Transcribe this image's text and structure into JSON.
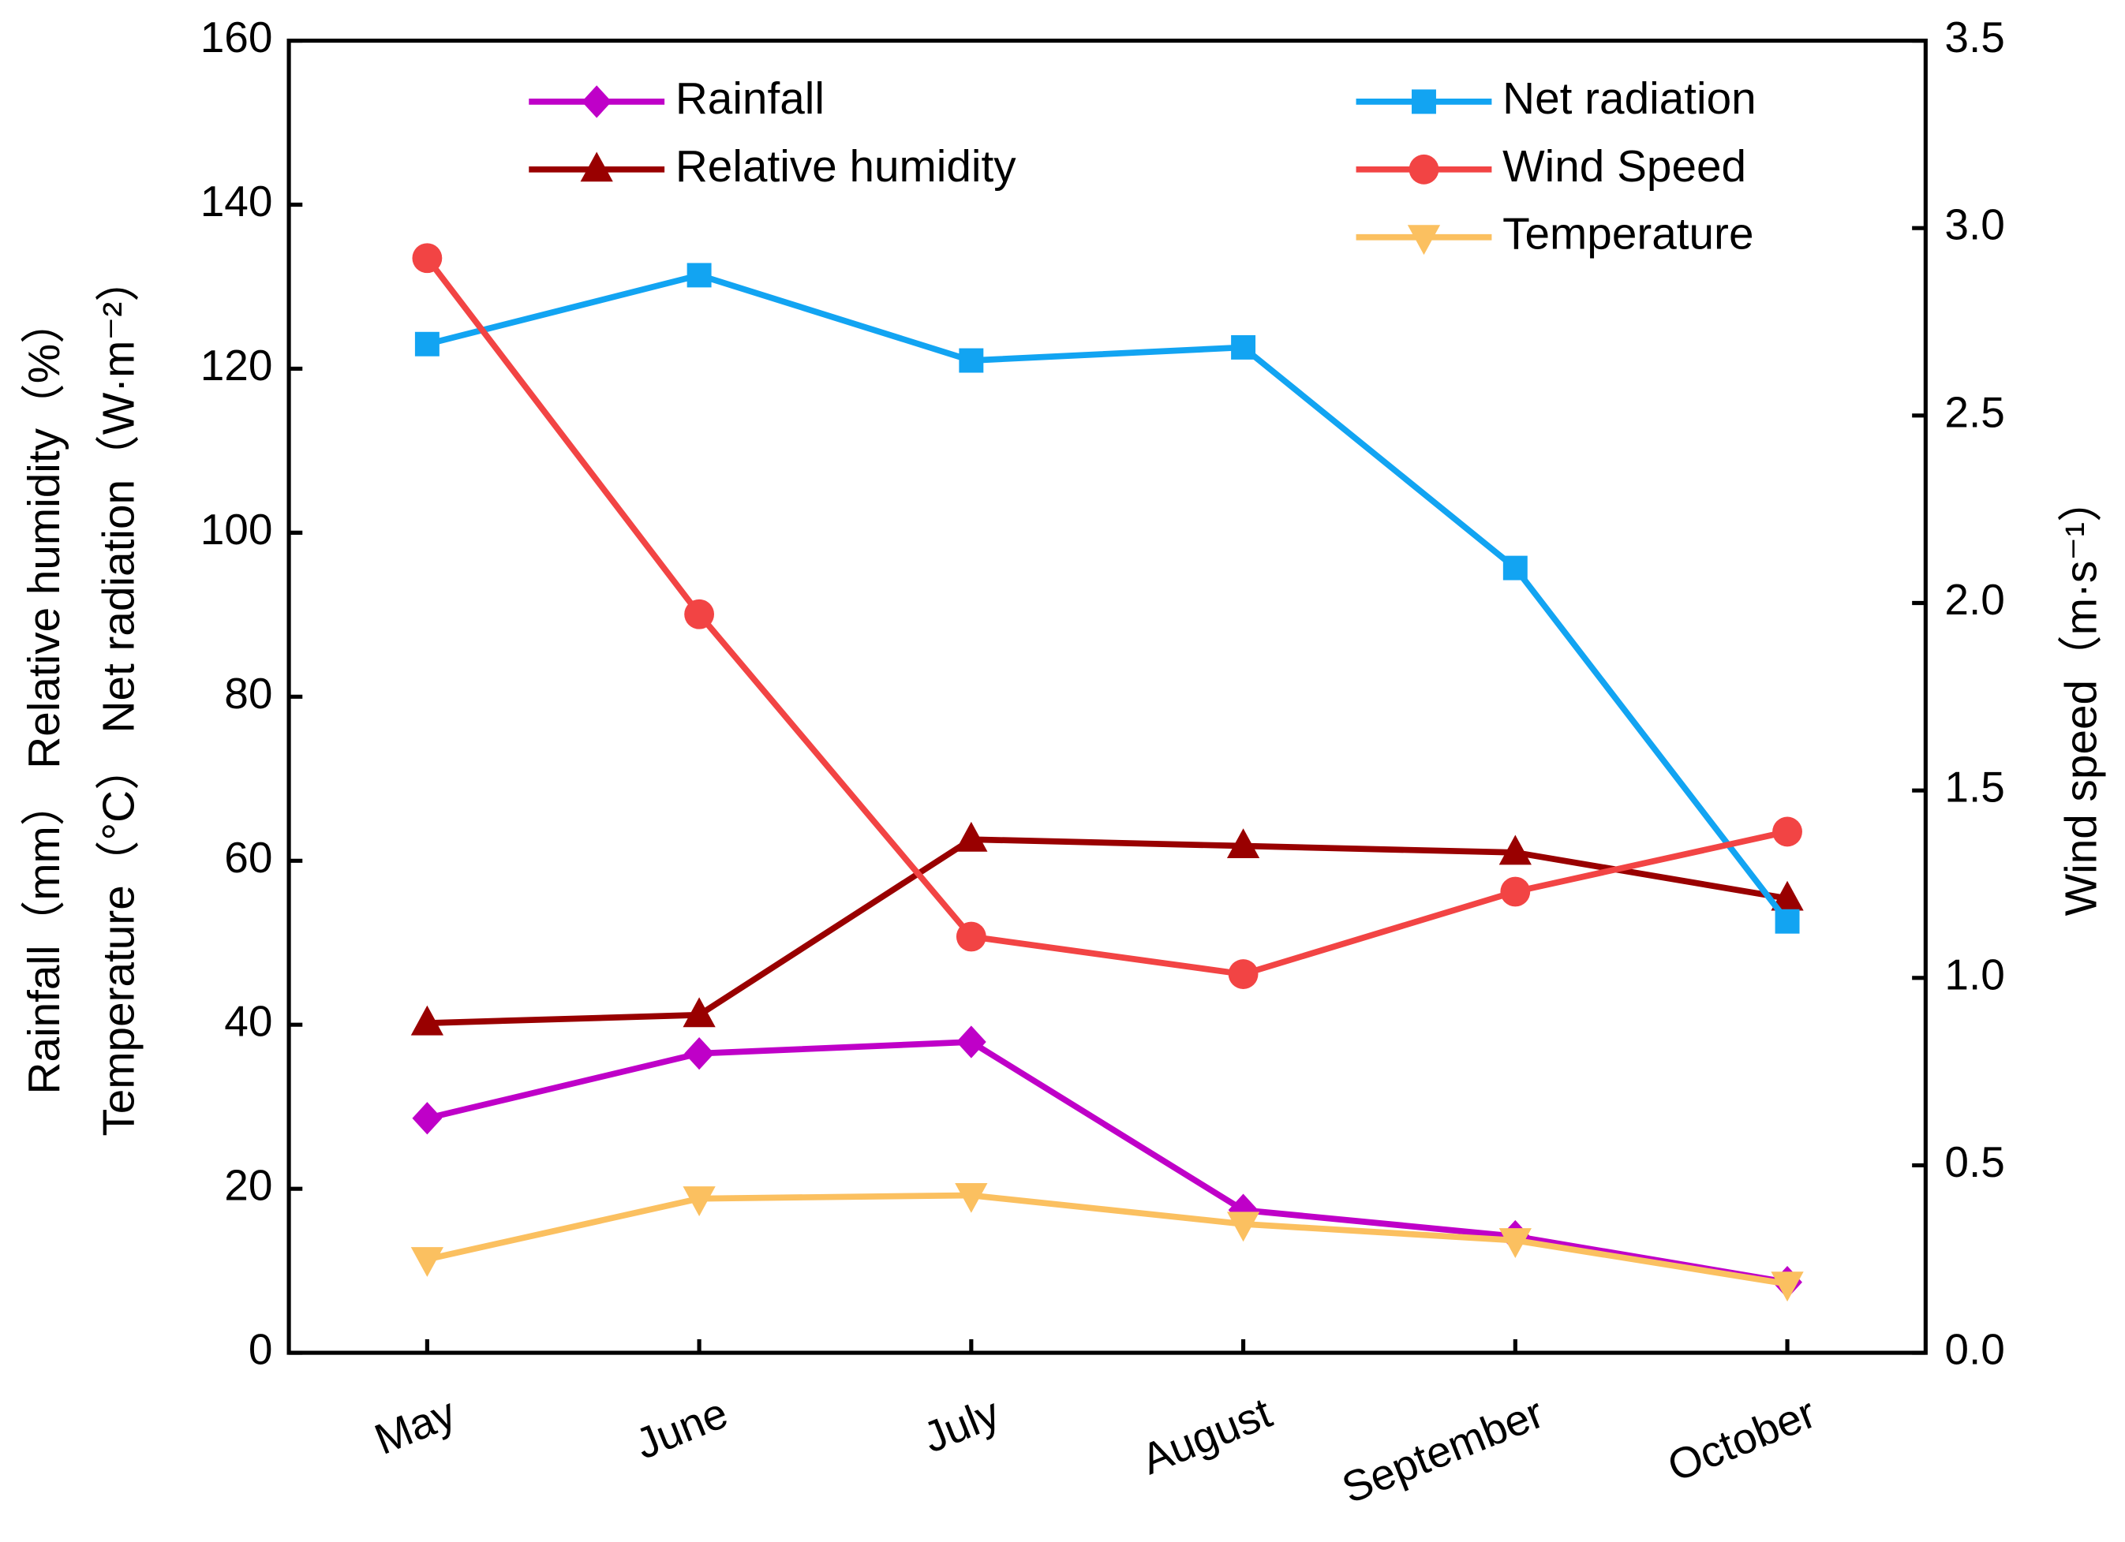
{
  "chart_data": {
    "type": "line",
    "categories": [
      "May",
      "June",
      "July",
      "August",
      "September",
      "October"
    ],
    "y_label_lines": [
      "Rainfall（mm） Relative humidity（%）",
      "Temperature（°C） Net radiation（W·m⁻²）"
    ],
    "y2_label": "Wind speed（m·s⁻¹）",
    "ylim": [
      0,
      160
    ],
    "yticks": [
      0,
      20,
      40,
      60,
      80,
      100,
      120,
      140,
      160
    ],
    "y2lim": [
      0,
      3.5
    ],
    "y2ticks": [
      {
        "value": 0,
        "label": "0.0"
      },
      0.5,
      {
        "value": 1,
        "label": "1.0"
      },
      1.5,
      {
        "value": 2,
        "label": "2.0"
      },
      2.5,
      {
        "value": 3,
        "label": "3.0"
      },
      3.5
    ],
    "series": [
      {
        "name": "Rainfall",
        "color": "#bf00c8",
        "marker": "diamond",
        "values": [
          28.6,
          36.5,
          37.9,
          17.4,
          14.2,
          8.6
        ]
      },
      {
        "name": "Relative humidity",
        "color": "#990000",
        "marker": "triangle-up",
        "values": [
          40.2,
          41.2,
          62.6,
          61.8,
          61.0,
          55.4
        ]
      },
      {
        "name": "Net radiation",
        "color": "#12a4f2",
        "marker": "square",
        "values": [
          123.0,
          131.4,
          121.0,
          122.6,
          95.7,
          52.6
        ]
      },
      {
        "name": "Wind Speed",
        "color": "#f24444",
        "marker": "circle",
        "axis": "y2",
        "values": [
          2.92,
          1.97,
          1.11,
          1.01,
          1.23,
          1.39
        ]
      },
      {
        "name": "Temperature",
        "color": "#fbc060",
        "marker": "triangle-down",
        "values": [
          11.4,
          18.8,
          19.2,
          15.7,
          13.7,
          8.4
        ]
      }
    ]
  }
}
